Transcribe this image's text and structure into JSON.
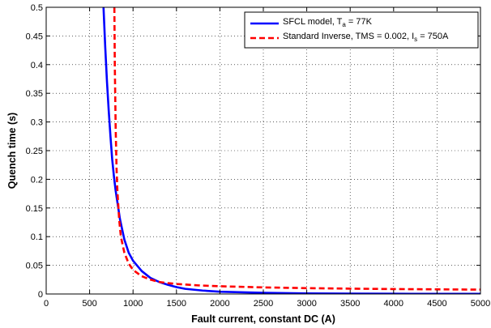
{
  "chart_data": {
    "type": "line",
    "xlabel": "Fault current, constant DC (A)",
    "ylabel": "Quench time (s)",
    "xlim": [
      0,
      5000
    ],
    "ylim": [
      0,
      0.5
    ],
    "xticks": [
      0,
      500,
      1000,
      1500,
      2000,
      2500,
      3000,
      3500,
      4000,
      4500,
      5000
    ],
    "yticks": [
      0,
      0.05,
      0.1,
      0.15,
      0.2,
      0.25,
      0.3,
      0.35,
      0.4,
      0.45,
      0.5
    ],
    "grid": true,
    "legend_position": "top-right",
    "series": [
      {
        "name": "SFCL model, T_a = 77K",
        "legend_main": "SFCL model, T",
        "legend_sub": "a",
        "legend_tail": " = 77K",
        "color": "#0000ff",
        "style": "solid",
        "x": [
          660,
          680,
          700,
          720,
          740,
          760,
          780,
          800,
          850,
          900,
          950,
          1000,
          1100,
          1200,
          1300,
          1400,
          1500,
          1600,
          1800,
          2000,
          2500,
          3000,
          3500,
          4000,
          4500,
          5000
        ],
        "y": [
          0.5,
          0.43,
          0.37,
          0.32,
          0.275,
          0.235,
          0.205,
          0.18,
          0.13,
          0.095,
          0.072,
          0.058,
          0.04,
          0.028,
          0.021,
          0.016,
          0.012,
          0.009,
          0.006,
          0.004,
          0.002,
          0.001,
          0.0006,
          0.0004,
          0.0003,
          0.0002
        ]
      },
      {
        "name": "Standard Inverse, TMS = 0.002, I_s = 750A",
        "legend_main": "Standard Inverse, TMS = 0.002, I",
        "legend_sub": "s",
        "legend_tail": " = 750A",
        "color": "#ff0000",
        "style": "dashed",
        "x": [
          785,
          790,
          800,
          810,
          820,
          840,
          860,
          900,
          950,
          1000,
          1100,
          1200,
          1300,
          1400,
          1500,
          1750,
          2000,
          2500,
          3000,
          3500,
          4000,
          4500,
          5000
        ],
        "y": [
          0.5,
          0.4,
          0.29,
          0.22,
          0.18,
          0.13,
          0.1,
          0.072,
          0.053,
          0.042,
          0.031,
          0.025,
          0.021,
          0.019,
          0.0175,
          0.015,
          0.0135,
          0.0115,
          0.0102,
          0.0093,
          0.0086,
          0.0081,
          0.0076
        ]
      }
    ]
  }
}
